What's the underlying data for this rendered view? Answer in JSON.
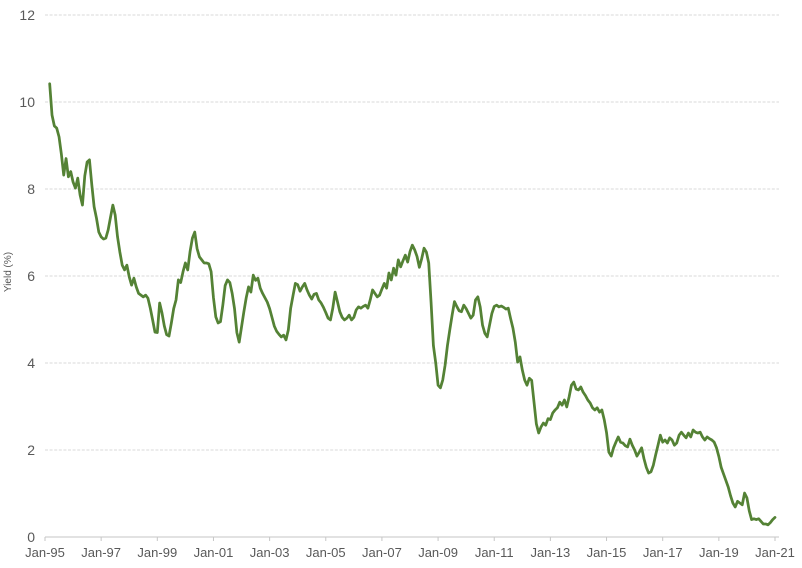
{
  "chart_data": {
    "type": "line",
    "title": "",
    "xlabel": "",
    "ylabel": "Yield (%)",
    "series_name": "Yield (%)",
    "line_color": "#548235",
    "grid_color": "#d9d9d9",
    "axis_color": "#c6c6c6",
    "label_color": "#595959",
    "background_color": "#ffffff",
    "ylim": [
      0,
      12
    ],
    "y_ticks": [
      0,
      2,
      4,
      6,
      8,
      10,
      12
    ],
    "x_tick_labels": [
      "Jan-95",
      "Jan-97",
      "Jan-99",
      "Jan-01",
      "Jan-03",
      "Jan-05",
      "Jan-07",
      "Jan-09",
      "Jan-11",
      "Jan-13",
      "Jan-15",
      "Jan-17",
      "Jan-19",
      "Jan-21"
    ],
    "x_tick_interval_months": 24,
    "x_axis_span_months": 312,
    "first_point_month_index": 2,
    "x_start": "Mar-1995",
    "x_end": "Jan-2021",
    "frequency": "monthly",
    "values": [
      10.42,
      9.7,
      9.45,
      9.4,
      9.2,
      8.8,
      8.32,
      8.7,
      8.28,
      8.4,
      8.16,
      8.02,
      8.25,
      7.86,
      7.63,
      8.3,
      8.62,
      8.67,
      8.1,
      7.59,
      7.33,
      7.01,
      6.9,
      6.85,
      6.87,
      7.06,
      7.35,
      7.63,
      7.4,
      6.9,
      6.55,
      6.25,
      6.14,
      6.25,
      5.98,
      5.79,
      5.95,
      5.75,
      5.6,
      5.56,
      5.52,
      5.56,
      5.49,
      5.26,
      4.99,
      4.71,
      4.7,
      5.38,
      5.15,
      4.85,
      4.65,
      4.62,
      4.92,
      5.25,
      5.45,
      5.91,
      5.85,
      6.1,
      6.3,
      6.14,
      6.56,
      6.87,
      7.01,
      6.63,
      6.44,
      6.37,
      6.3,
      6.3,
      6.28,
      6.1,
      5.5,
      5.06,
      4.92,
      4.95,
      5.33,
      5.78,
      5.91,
      5.85,
      5.6,
      5.25,
      4.7,
      4.48,
      4.83,
      5.18,
      5.5,
      5.75,
      5.63,
      6.02,
      5.9,
      5.95,
      5.72,
      5.6,
      5.5,
      5.4,
      5.25,
      5.05,
      4.85,
      4.73,
      4.66,
      4.6,
      4.64,
      4.53,
      4.76,
      5.26,
      5.55,
      5.83,
      5.8,
      5.65,
      5.75,
      5.83,
      5.68,
      5.56,
      5.47,
      5.58,
      5.6,
      5.45,
      5.38,
      5.28,
      5.16,
      5.03,
      4.99,
      5.26,
      5.63,
      5.41,
      5.18,
      5.05,
      4.99,
      5.03,
      5.1,
      4.99,
      5.05,
      5.22,
      5.29,
      5.26,
      5.3,
      5.33,
      5.26,
      5.45,
      5.68,
      5.6,
      5.52,
      5.56,
      5.7,
      5.83,
      5.72,
      6.07,
      5.91,
      6.18,
      6.02,
      6.37,
      6.21,
      6.35,
      6.48,
      6.32,
      6.56,
      6.71,
      6.6,
      6.45,
      6.2,
      6.4,
      6.64,
      6.55,
      6.3,
      5.4,
      4.4,
      4.0,
      3.49,
      3.43,
      3.61,
      3.95,
      4.4,
      4.76,
      5.1,
      5.41,
      5.3,
      5.2,
      5.18,
      5.33,
      5.25,
      5.14,
      5.03,
      5.1,
      5.45,
      5.52,
      5.29,
      4.87,
      4.68,
      4.6,
      4.87,
      5.14,
      5.3,
      5.33,
      5.29,
      5.31,
      5.28,
      5.24,
      5.26,
      5.02,
      4.8,
      4.48,
      4.02,
      4.14,
      3.84,
      3.61,
      3.49,
      3.65,
      3.6,
      3.1,
      2.6,
      2.39,
      2.53,
      2.62,
      2.57,
      2.72,
      2.7,
      2.85,
      2.92,
      2.97,
      3.1,
      3.03,
      3.15,
      2.99,
      3.22,
      3.49,
      3.56,
      3.4,
      3.38,
      3.45,
      3.33,
      3.25,
      3.15,
      3.08,
      2.97,
      2.92,
      2.97,
      2.87,
      2.92,
      2.7,
      2.4,
      1.95,
      1.86,
      2.05,
      2.18,
      2.3,
      2.18,
      2.16,
      2.1,
      2.07,
      2.25,
      2.11,
      2.0,
      1.86,
      1.95,
      2.05,
      1.8,
      1.6,
      1.47,
      1.5,
      1.65,
      1.89,
      2.11,
      2.34,
      2.18,
      2.23,
      2.16,
      2.28,
      2.23,
      2.11,
      2.16,
      2.34,
      2.41,
      2.34,
      2.28,
      2.39,
      2.3,
      2.46,
      2.41,
      2.39,
      2.41,
      2.3,
      2.23,
      2.3,
      2.26,
      2.23,
      2.18,
      2.05,
      1.85,
      1.6,
      1.45,
      1.3,
      1.15,
      0.95,
      0.78,
      0.69,
      0.82,
      0.78,
      0.74,
      1.01,
      0.9,
      0.6,
      0.4,
      0.42,
      0.4,
      0.42,
      0.36,
      0.3,
      0.3,
      0.28,
      0.33,
      0.4,
      0.45
    ]
  }
}
